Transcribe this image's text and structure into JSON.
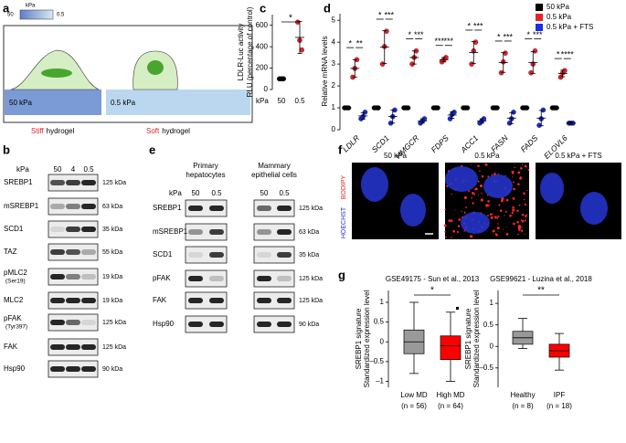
{
  "panel_letters": [
    "a",
    "b",
    "c",
    "d",
    "e",
    "f",
    "g"
  ],
  "schematic": {
    "scale_unit": "kPa",
    "scale_max": "50",
    "scale_min": "0.5",
    "stiff_label": "50 kPa",
    "soft_label": "0.5 kPa",
    "stiff_word": "Stiff",
    "stiff_rest": "hydrogel",
    "soft_word": "Soft",
    "soft_rest": "hydrogel"
  },
  "blot_b": {
    "lane_unit": "kPa",
    "lanes": [
      "50",
      "4",
      "0.5"
    ],
    "rows": [
      {
        "name": "SREBP1",
        "size": "125 kDa"
      },
      {
        "name": "mSREBP1",
        "size": "63 kDa"
      },
      {
        "name": "SCD1",
        "size": "35 kDa"
      },
      {
        "name": "TAZ",
        "size": "55 kDa"
      },
      {
        "name": "pMLC2",
        "sub": "(Ser19)",
        "size": "19 kDa"
      },
      {
        "name": "MLC2",
        "size": "19 kDa"
      },
      {
        "name": "pFAK",
        "sub": "(Tyr397)",
        "size": "125 kDa"
      },
      {
        "name": "FAK",
        "size": "125 kDa"
      },
      {
        "name": "Hsp90",
        "size": "90 kDa"
      }
    ]
  },
  "blot_e": {
    "groups": [
      [
        "Primary",
        "hepatocytes"
      ],
      [
        "Mammary",
        "epithelial cells"
      ]
    ],
    "lane_unit": "kPa",
    "lanes": [
      "50",
      "0.5",
      "50",
      "0.5"
    ],
    "rows": [
      {
        "name": "SREBP1",
        "size": "125 kDa"
      },
      {
        "name": "mSREBP1",
        "size": "63 kDa"
      },
      {
        "name": "SCD1",
        "size": "35 kDa"
      },
      {
        "name": "pFAK",
        "size": "125 kDa"
      },
      {
        "name": "FAK",
        "size": "125 kDa"
      },
      {
        "name": "Hsp90",
        "size": "90 kDa"
      }
    ]
  },
  "microscopy": {
    "titles": [
      "50 kPa",
      "0.5 kPa",
      "0.5 kPa + FTS"
    ],
    "stain_red": "BODIPY",
    "stain_blue": "HOECHST"
  },
  "chart_data": [
    {
      "type": "dot",
      "y_label": [
        "LDLR-Luc activity",
        "RLU (percentage of control)"
      ],
      "x_label": "kPa",
      "categories": [
        "50",
        "0.5"
      ],
      "points": [
        [
          100,
          100,
          100
        ],
        [
          630,
          460,
          370
        ]
      ],
      "values": [
        100,
        487
      ],
      "errors": [
        0,
        150
      ],
      "colors": [
        "#000000",
        "#e8222a"
      ],
      "significance": "*",
      "ylim": [
        0,
        700
      ],
      "yticks": [
        0,
        200,
        400,
        600
      ]
    },
    {
      "type": "dot",
      "y_label": "Relative mRNA levels",
      "categories": [
        "LDLR",
        "SCD1",
        "HMGCR",
        "FDPS",
        "ACC1",
        "FASN",
        "FADS",
        "ELOVL6"
      ],
      "series": [
        {
          "name": "50 kPa",
          "color": "#000000",
          "points": [
            [
              1,
              1,
              1
            ],
            [
              1,
              1,
              1
            ],
            [
              1,
              1,
              1
            ],
            [
              1,
              1,
              1
            ],
            [
              1,
              1,
              1
            ],
            [
              1,
              1,
              1
            ],
            [
              1,
              1,
              1
            ],
            [
              1,
              1,
              1
            ]
          ],
          "values": [
            1,
            1,
            1,
            1,
            1,
            1,
            1,
            1
          ],
          "errors": [
            0,
            0,
            0,
            0,
            0,
            0,
            0,
            0
          ]
        },
        {
          "name": "0.5 kPa",
          "color": "#e8222a",
          "points": [
            [
              2.4,
              2.8,
              3.2
            ],
            [
              3.0,
              3.8,
              4.5
            ],
            [
              3.0,
              3.3,
              3.6
            ],
            [
              3.1,
              3.2,
              3.3
            ],
            [
              3.0,
              3.6,
              4.0
            ],
            [
              2.6,
              3.1,
              3.5
            ],
            [
              2.6,
              3.0,
              3.6
            ],
            [
              2.4,
              2.6,
              2.7
            ]
          ],
          "values": [
            2.8,
            3.77,
            3.3,
            3.2,
            3.53,
            3.07,
            3.07,
            2.57
          ],
          "errors": [
            0.4,
            0.75,
            0.3,
            0.1,
            0.5,
            0.45,
            0.5,
            0.15
          ]
        },
        {
          "name": "0.5 kPa + FTS",
          "color": "#1a2ee0",
          "points": [
            [
              0.5,
              0.6,
              0.8
            ],
            [
              0.3,
              0.6,
              0.9
            ],
            [
              0.3,
              0.4,
              0.5
            ],
            [
              0.5,
              0.7,
              0.8
            ],
            [
              0.3,
              0.4,
              0.5
            ],
            [
              0.3,
              0.5,
              0.8
            ],
            [
              0.2,
              0.5,
              0.9
            ],
            [
              0.3,
              0.3,
              0.3
            ]
          ],
          "values": [
            0.63,
            0.6,
            0.4,
            0.67,
            0.4,
            0.53,
            0.53,
            0.3
          ],
          "errors": [
            0.15,
            0.3,
            0.1,
            0.15,
            0.1,
            0.25,
            0.35,
            0.05
          ]
        }
      ],
      "significance": [
        [
          "*",
          "**"
        ],
        [
          "*",
          "***"
        ],
        [
          "*",
          "***"
        ],
        [
          "***",
          "***"
        ],
        [
          "*",
          "***"
        ],
        [
          "*",
          "***"
        ],
        [
          "*",
          "***"
        ],
        [
          "*",
          "****"
        ]
      ],
      "ylim": [
        0,
        5.3
      ],
      "yticks": [
        0,
        1,
        2,
        3,
        4,
        5
      ]
    },
    {
      "type": "box",
      "title": "GSE49175 - Sun et al., 2013",
      "y_label": [
        "SREBP1 signature",
        "Standardized expression level"
      ],
      "categories": [
        "Low MD",
        "High MD"
      ],
      "category_notes": [
        "(n = 56)",
        "(n = 64)"
      ],
      "boxes": [
        {
          "whislo": -0.8,
          "q1": -0.3,
          "med": 0,
          "q3": 0.3,
          "whishi": 1.0,
          "fliers": []
        },
        {
          "whislo": -1.0,
          "q1": -0.45,
          "med": -0.1,
          "q3": 0.15,
          "whishi": 0.75,
          "fliers": [
            0.85
          ]
        }
      ],
      "colors": [
        "#999999",
        "#ff0000"
      ],
      "significance": "*",
      "ylim": [
        -1.15,
        1.3
      ],
      "yticks": [
        1,
        0.5,
        0,
        {
          "value": -0.5,
          "label": "–0.5"
        },
        {
          "value": -1,
          "label": "–1"
        }
      ]
    },
    {
      "type": "box",
      "title": "GSE99621 - Luzina et al., 2018",
      "y_label": [
        "SREBP1 signature",
        "Standardized expression level"
      ],
      "categories": [
        "Healthy",
        "IPF"
      ],
      "category_notes": [
        "(n = 8)",
        "(n = 18)"
      ],
      "boxes": [
        {
          "whislo": -0.05,
          "q1": 0.05,
          "med": 0.2,
          "q3": 0.35,
          "whishi": 0.65,
          "fliers": []
        },
        {
          "whislo": -0.55,
          "q1": -0.25,
          "med": -0.1,
          "q3": 0.05,
          "whishi": 0.3,
          "fliers": []
        }
      ],
      "colors": [
        "#999999",
        "#ff0000"
      ],
      "significance": "**",
      "ylim": [
        -0.95,
        1.3
      ],
      "yticks": [
        1,
        0.5,
        0,
        {
          "value": -0.5,
          "label": "–0.5"
        }
      ]
    }
  ]
}
